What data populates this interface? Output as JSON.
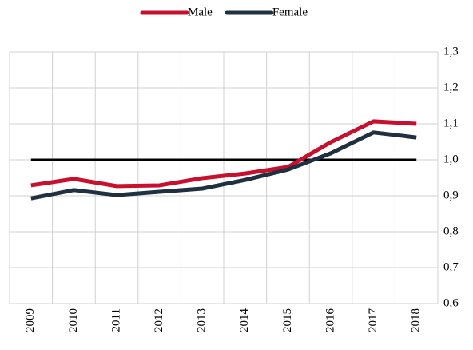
{
  "chart_data": {
    "type": "line",
    "categories": [
      "2009",
      "2010",
      "2011",
      "2012",
      "2013",
      "2014",
      "2015",
      "2016",
      "2017",
      "2018"
    ],
    "series": [
      {
        "name": "Male",
        "color": "#c8102e",
        "values": [
          0.929,
          0.947,
          0.927,
          0.929,
          0.949,
          0.962,
          0.98,
          1.049,
          1.107,
          1.1
        ]
      },
      {
        "name": "Female",
        "color": "#1f3140",
        "values": [
          0.893,
          0.916,
          0.902,
          0.911,
          0.92,
          0.944,
          0.973,
          1.018,
          1.076,
          1.062
        ]
      }
    ],
    "reference_line": 1.0,
    "ylim": [
      0.6,
      1.3
    ],
    "yticks": [
      {
        "value": 0.6,
        "label": "0,6"
      },
      {
        "value": 0.7,
        "label": "0,7"
      },
      {
        "value": 0.8,
        "label": "0,8"
      },
      {
        "value": 0.9,
        "label": "0,9"
      },
      {
        "value": 1.0,
        "label": "1,0"
      },
      {
        "value": 1.1,
        "label": "1,1"
      },
      {
        "value": 1.2,
        "label": "1,2"
      },
      {
        "value": 1.3,
        "label": "1,3"
      }
    ],
    "y_axis_side": "right",
    "grid": true,
    "legend": "top"
  }
}
